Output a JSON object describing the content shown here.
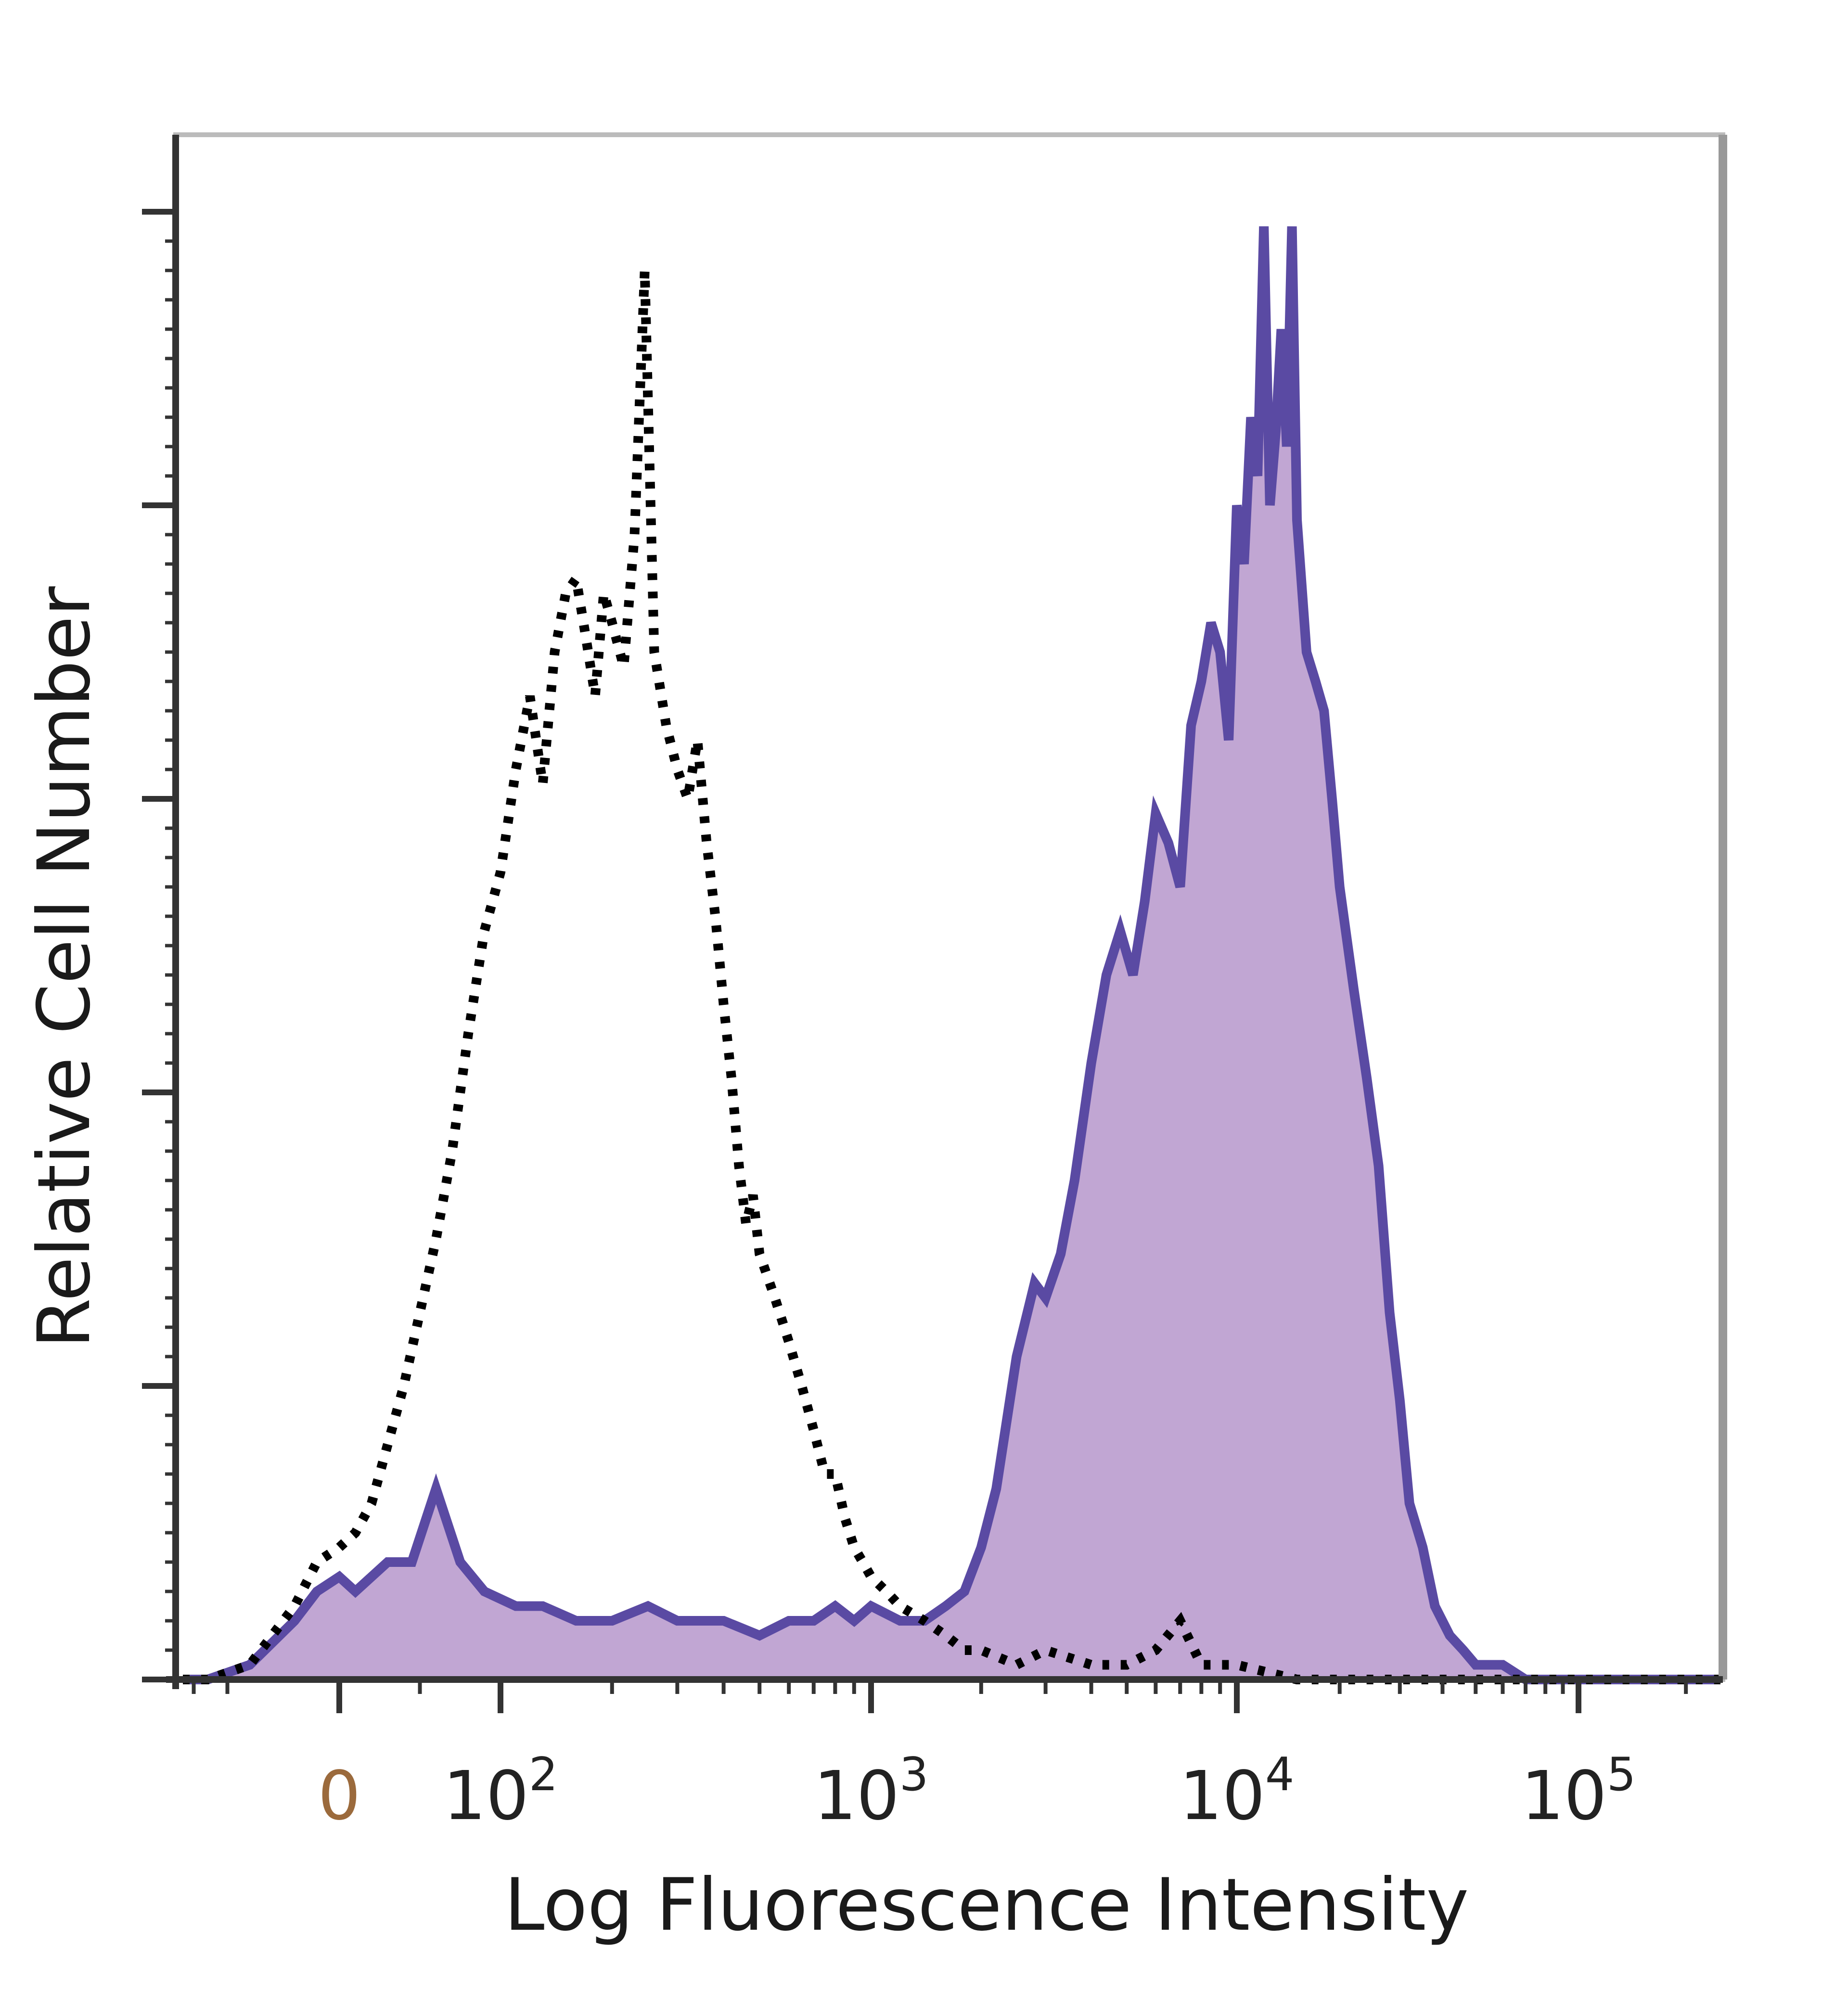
{
  "chart_data": {
    "type": "histogram",
    "xlabel": "Log Fluorescence Intensity",
    "ylabel": "Relative Cell Number",
    "x_scale": "biexponential",
    "x_ticks": [
      {
        "value": 0,
        "label": "0",
        "base": "",
        "exp": ""
      },
      {
        "value": 100,
        "label": "10^2",
        "base": "10",
        "exp": "2"
      },
      {
        "value": 1000,
        "label": "10^3",
        "base": "10",
        "exp": "3"
      },
      {
        "value": 10000,
        "label": "10^4",
        "base": "10",
        "exp": "4"
      },
      {
        "value": 100000,
        "label": "10^5",
        "base": "10",
        "exp": "5"
      }
    ],
    "xlim": [
      -250,
      250000
    ],
    "ylim": [
      0,
      100
    ],
    "y_tick_labels": "none",
    "grid": false,
    "legend": "none",
    "colors": {
      "stained_line": "#5a4aa3",
      "stained_fill": "#c1a6d3",
      "control_line": "#000000",
      "axis": "#333333",
      "frame": "#bbbbbb"
    },
    "series": [
      {
        "style": "filled-solid",
        "x": [
          -250,
          -150,
          -80,
          -40,
          -20,
          0,
          10,
          20,
          30,
          45,
          60,
          75,
          90,
          110,
          130,
          160,
          200,
          250,
          300,
          400,
          500,
          600,
          700,
          800,
          900,
          1000,
          1200,
          1400,
          1600,
          1800,
          2000,
          2200,
          2500,
          2800,
          3000,
          3300,
          3600,
          4000,
          4400,
          4800,
          5200,
          5600,
          6000,
          6500,
          7000,
          7500,
          8000,
          8500,
          9000,
          9500,
          10000,
          10500,
          11000,
          11500,
          12000,
          12500,
          13000,
          13500,
          14000,
          14500,
          15000,
          16000,
          17000,
          18000,
          19000,
          20000,
          22000,
          24000,
          26000,
          28000,
          30000,
          32000,
          35000,
          38000,
          42000,
          46000,
          50000,
          60000,
          70000,
          90000,
          120000,
          160000,
          250000
        ],
        "y": [
          0,
          0,
          1,
          4,
          6,
          7,
          6,
          7,
          8,
          8,
          13,
          8,
          6,
          5,
          5,
          4,
          4,
          5,
          4,
          4,
          3,
          4,
          4,
          5,
          4,
          5,
          4,
          4,
          5,
          6,
          9,
          13,
          22,
          27,
          26,
          29,
          34,
          42,
          48,
          51,
          48,
          53,
          59,
          57,
          54,
          65,
          68,
          72,
          70,
          64,
          80,
          76,
          86,
          82,
          99,
          80,
          85,
          92,
          84,
          99,
          79,
          70,
          68,
          66,
          60,
          54,
          47,
          41,
          35,
          25,
          19,
          12,
          9,
          5,
          3,
          2,
          1,
          1,
          0,
          0,
          0,
          0,
          0
        ]
      },
      {
        "style": "dotted",
        "x": [
          -250,
          -150,
          -80,
          -40,
          -20,
          0,
          10,
          20,
          30,
          40,
          50,
          60,
          70,
          80,
          90,
          100,
          110,
          120,
          130,
          140,
          150,
          160,
          170,
          180,
          190,
          200,
          215,
          230,
          245,
          260,
          280,
          300,
          320,
          340,
          360,
          380,
          400,
          420,
          440,
          460,
          480,
          500,
          550,
          600,
          650,
          700,
          750,
          800,
          850,
          900,
          950,
          1000,
          1100,
          1200,
          1400,
          1600,
          1800,
          2000,
          2500,
          3000,
          4000,
          5000,
          6000,
          7000,
          8000,
          10000,
          15000,
          20000,
          40000,
          80000,
          250000
        ],
        "y": [
          0,
          0,
          1,
          5,
          8,
          9,
          10,
          12,
          16,
          20,
          25,
          30,
          36,
          44,
          51,
          55,
          62,
          67,
          61,
          70,
          74,
          75,
          71,
          67,
          74,
          72,
          69,
          78,
          96,
          70,
          65,
          62,
          60,
          64,
          57,
          52,
          46,
          41,
          35,
          31,
          33,
          29,
          26,
          23,
          20,
          17,
          14,
          14,
          11,
          9,
          8,
          7,
          6,
          5,
          4,
          3,
          2,
          2,
          1,
          2,
          1,
          1,
          2,
          4,
          1,
          1,
          0,
          0,
          0,
          0,
          0
        ]
      }
    ]
  }
}
